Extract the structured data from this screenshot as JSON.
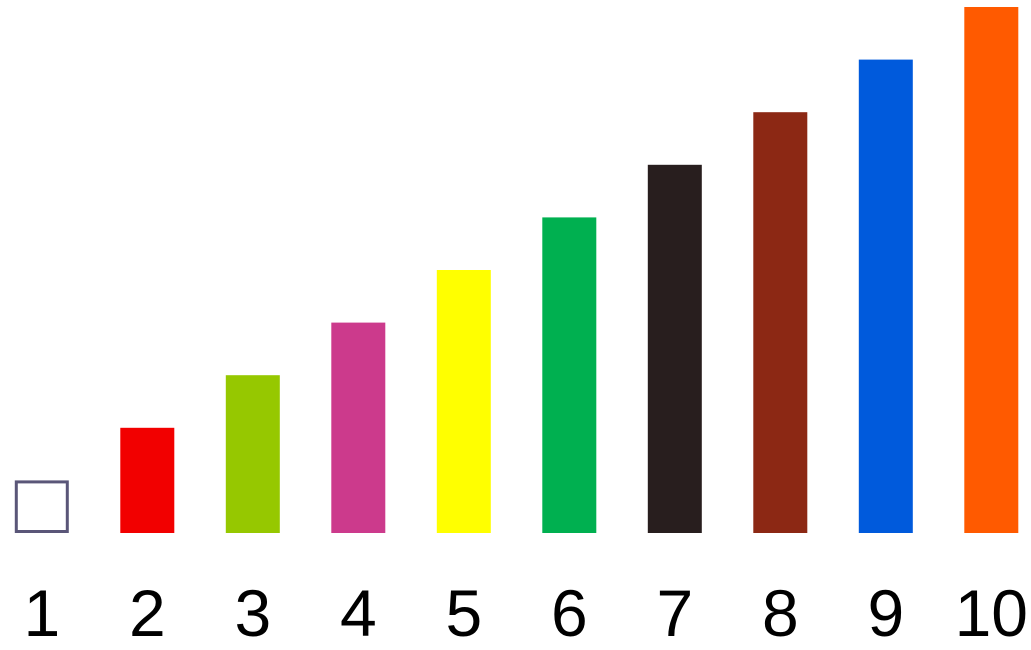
{
  "chart_data": {
    "type": "bar",
    "categories": [
      "1",
      "2",
      "3",
      "4",
      "5",
      "6",
      "7",
      "8",
      "9",
      "10"
    ],
    "values": [
      1,
      2,
      3,
      4,
      5,
      6,
      7,
      8,
      9,
      10
    ],
    "colors": [
      "#ffffff",
      "#f20000",
      "#96c800",
      "#cc3a8c",
      "#ffff00",
      "#00b050",
      "#281e1e",
      "#8c2814",
      "#005adc",
      "#ff5a00"
    ],
    "outline_colors": [
      "#5a5678",
      "none",
      "none",
      "none",
      "none",
      "none",
      "none",
      "none",
      "none",
      "none"
    ],
    "ylim": [
      0,
      10
    ],
    "grid": false,
    "legend": "none"
  }
}
